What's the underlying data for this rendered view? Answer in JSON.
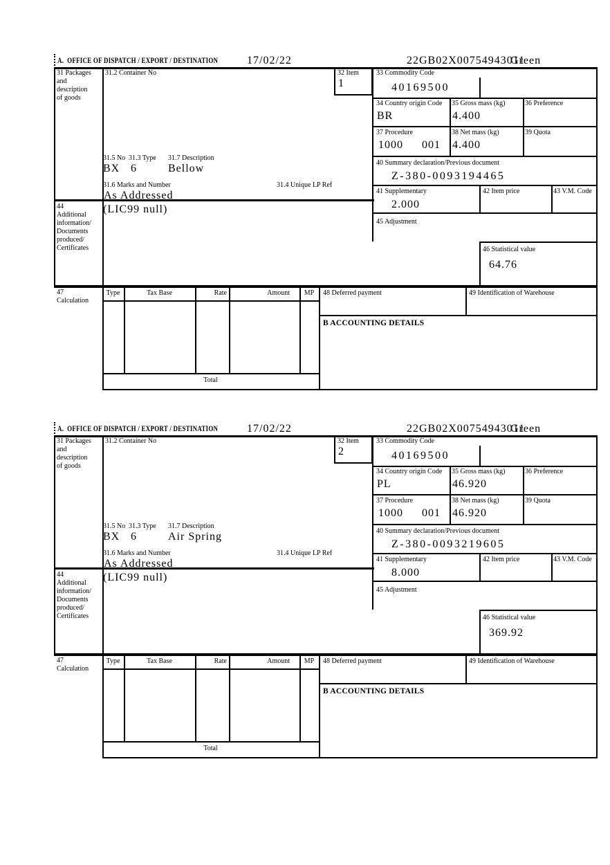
{
  "page": {
    "background": "#ffffff",
    "ink": "#000000"
  },
  "header": {
    "title": "A.  OFFICE OF DISPATCH / EXPORT / DESTINATION",
    "date": "17/02/22",
    "mrn": "22GB02X00754943011",
    "status": "Green"
  },
  "labels": {
    "box31": "31 Packages\nand\ndescription\nof goods",
    "container_no": "31.2 Container No",
    "item": "32 Item",
    "commodity_code": "33 Commodity Code",
    "country_origin": "34 Country origin Code",
    "gross_mass": "35 Gross mass (kg)",
    "preference": "36 Preference",
    "procedure": "37 Procedure",
    "net_mass": "38 Net mass (kg)",
    "quota": "39 Quota",
    "summary_declaration": "40 Summary declaration/Previous document",
    "supplementary": "41 Supplementary",
    "item_price": "42 Item price",
    "vm_code": "43 V.M. Code",
    "box44": "44\nAdditional\ninformation/\nDocuments\nproduced/\nCertificates",
    "adjustment": "45 Adjustment",
    "statistical_value": "46 Statistical value",
    "box47": "47\nCalculation",
    "no_315": "31.5 No",
    "type_313": "31.3 Type",
    "description_317": "31.7 Description",
    "marks_316": "31.6 Marks and Number",
    "lp_ref_314": "31.4 Unique LP Ref",
    "col_type": "Type",
    "col_tax_base": "Tax Base",
    "col_rate": "Rate",
    "col_amount": "Amount",
    "col_mp": "MP",
    "total": "Total",
    "deferred_payment": "48 Deferred payment",
    "warehouse": "49 Identification of Warehouse",
    "accounting": "B ACCOUNTING DETAILS"
  },
  "forms": [
    {
      "item_no": "1",
      "commodity_code": "40169500",
      "country_origin": "BR",
      "gross_mass": "4.400",
      "net_mass": "4.400",
      "procedure": "1000",
      "procedure_ext": "001",
      "summary_declaration": "Z-380-0093194465",
      "supplementary": "2.000",
      "statistical_value": "64.76",
      "package_no": "BX",
      "package_type": "6",
      "goods_description": "Bellow",
      "marks": "As Addressed",
      "additional_info": "(LIC99 null)"
    },
    {
      "item_no": "2",
      "commodity_code": "40169500",
      "country_origin": "PL",
      "gross_mass": "46.920",
      "net_mass": "46.920",
      "procedure": "1000",
      "procedure_ext": "001",
      "summary_declaration": "Z-380-0093219605",
      "supplementary": "8.000",
      "statistical_value": "369.92",
      "package_no": "BX",
      "package_type": "6",
      "goods_description": "Air Spring",
      "marks": "As Addressed",
      "additional_info": "(LIC99 null)"
    }
  ]
}
